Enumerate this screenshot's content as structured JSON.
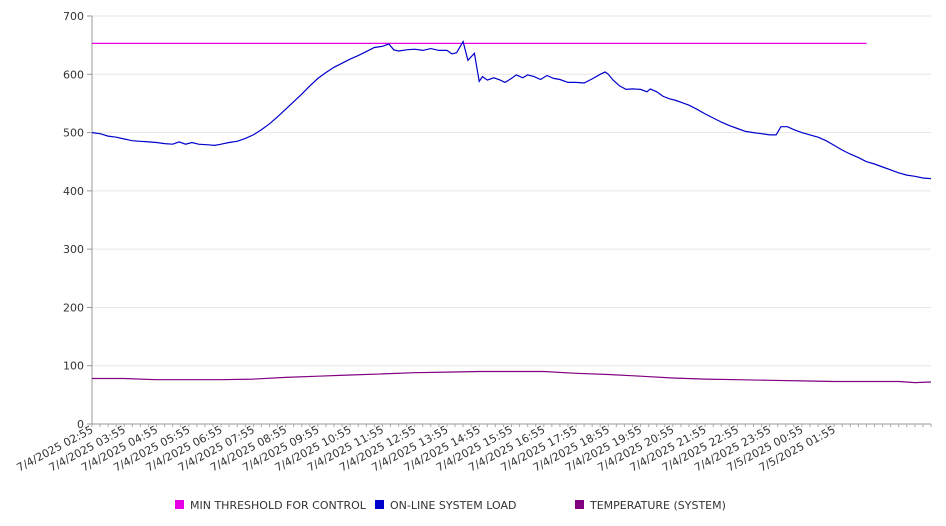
{
  "chart_data": {
    "type": "line",
    "title": "",
    "xlabel": "",
    "ylabel": "",
    "ylim": [
      0,
      700
    ],
    "y_ticks": [
      0,
      100,
      200,
      300,
      400,
      500,
      600,
      700
    ],
    "grid": true,
    "legend_position": "bottom",
    "x_tick_labels": [
      "7/4/2025 02:55",
      "7/4/2025 03:55",
      "7/4/2025 04:55",
      "7/4/2025 05:55",
      "7/4/2025 06:55",
      "7/4/2025 07:55",
      "7/4/2025 08:55",
      "7/4/2025 09:55",
      "7/4/2025 10:55",
      "7/4/2025 11:55",
      "7/4/2025 12:55",
      "7/4/2025 13:55",
      "7/4/2025 14:55",
      "7/4/2025 15:55",
      "7/4/2025 16:55",
      "7/4/2025 17:55",
      "7/4/2025 18:55",
      "7/4/2025 19:55",
      "7/4/2025 20:55",
      "7/4/2025 21:55",
      "7/4/2025 22:55",
      "7/4/2025 23:55",
      "7/5/2025 00:55",
      "7/5/2025 01:55"
    ],
    "series": [
      {
        "name": "MIN THRESHOLD FOR CONTROL",
        "color": "#e600e6",
        "points": [
          [
            0,
            653
          ],
          [
            24,
            653
          ]
        ]
      },
      {
        "name": "ON-LINE SYSTEM LOAD",
        "color": "#0000cc",
        "points": [
          [
            0,
            500
          ],
          [
            0.25,
            498
          ],
          [
            0.5,
            494
          ],
          [
            0.75,
            492
          ],
          [
            1,
            489
          ],
          [
            1.25,
            486
          ],
          [
            1.5,
            485
          ],
          [
            1.75,
            484
          ],
          [
            2,
            483
          ],
          [
            2.25,
            481
          ],
          [
            2.5,
            480
          ],
          [
            2.7,
            484
          ],
          [
            2.9,
            480
          ],
          [
            3.1,
            483
          ],
          [
            3.3,
            480
          ],
          [
            3.6,
            479
          ],
          [
            3.8,
            478
          ],
          [
            4,
            480
          ],
          [
            4.25,
            483
          ],
          [
            4.5,
            485
          ],
          [
            4.75,
            490
          ],
          [
            5,
            496
          ],
          [
            5.25,
            505
          ],
          [
            5.5,
            515
          ],
          [
            5.75,
            527
          ],
          [
            6,
            540
          ],
          [
            6.25,
            553
          ],
          [
            6.5,
            566
          ],
          [
            6.75,
            580
          ],
          [
            7,
            593
          ],
          [
            7.25,
            603
          ],
          [
            7.5,
            612
          ],
          [
            7.75,
            619
          ],
          [
            8,
            626
          ],
          [
            8.25,
            632
          ],
          [
            8.5,
            639
          ],
          [
            8.75,
            646
          ],
          [
            9,
            648
          ],
          [
            9.2,
            652
          ],
          [
            9.35,
            642
          ],
          [
            9.5,
            640
          ],
          [
            9.75,
            642
          ],
          [
            10,
            643
          ],
          [
            10.25,
            641
          ],
          [
            10.5,
            644
          ],
          [
            10.75,
            641
          ],
          [
            11,
            641
          ],
          [
            11.15,
            635
          ],
          [
            11.3,
            637
          ],
          [
            11.5,
            656
          ],
          [
            11.65,
            624
          ],
          [
            11.85,
            636
          ],
          [
            12,
            588
          ],
          [
            12.1,
            596
          ],
          [
            12.25,
            590
          ],
          [
            12.45,
            594
          ],
          [
            12.65,
            590
          ],
          [
            12.8,
            586
          ],
          [
            13,
            593
          ],
          [
            13.15,
            599
          ],
          [
            13.35,
            594
          ],
          [
            13.5,
            599
          ],
          [
            13.7,
            596
          ],
          [
            13.9,
            591
          ],
          [
            14.1,
            598
          ],
          [
            14.3,
            593
          ],
          [
            14.5,
            591
          ],
          [
            14.75,
            586
          ],
          [
            15,
            586
          ],
          [
            15.25,
            585
          ],
          [
            15.5,
            592
          ],
          [
            15.75,
            600
          ],
          [
            15.9,
            604
          ],
          [
            16,
            600
          ],
          [
            16.15,
            590
          ],
          [
            16.35,
            580
          ],
          [
            16.55,
            574
          ],
          [
            16.75,
            575
          ],
          [
            17,
            574
          ],
          [
            17.2,
            570
          ],
          [
            17.3,
            575
          ],
          [
            17.5,
            570
          ],
          [
            17.7,
            562
          ],
          [
            17.9,
            558
          ],
          [
            18.1,
            555
          ],
          [
            18.3,
            551
          ],
          [
            18.5,
            547
          ],
          [
            18.75,
            540
          ],
          [
            19,
            532
          ],
          [
            19.25,
            525
          ],
          [
            19.5,
            518
          ],
          [
            19.75,
            512
          ],
          [
            20,
            507
          ],
          [
            20.25,
            502
          ],
          [
            20.5,
            500
          ],
          [
            20.75,
            498
          ],
          [
            21,
            496
          ],
          [
            21.2,
            496
          ],
          [
            21.35,
            510
          ],
          [
            21.55,
            510
          ],
          [
            21.75,
            505
          ],
          [
            22,
            500
          ],
          [
            22.25,
            496
          ],
          [
            22.5,
            492
          ],
          [
            22.75,
            486
          ],
          [
            23,
            478
          ],
          [
            23.25,
            470
          ],
          [
            23.5,
            463
          ],
          [
            23.75,
            457
          ],
          [
            24,
            450
          ],
          [
            24.25,
            446
          ],
          [
            24.5,
            441
          ],
          [
            24.75,
            436
          ],
          [
            25,
            431
          ],
          [
            25.25,
            427
          ],
          [
            25.5,
            425
          ],
          [
            25.75,
            422
          ],
          [
            26,
            421
          ]
        ]
      },
      {
        "name": "TEMPERATURE (SYSTEM)",
        "color": "#800080",
        "points": [
          [
            0,
            78
          ],
          [
            1,
            78
          ],
          [
            2,
            76
          ],
          [
            3,
            76
          ],
          [
            4,
            76
          ],
          [
            5,
            77
          ],
          [
            6,
            80
          ],
          [
            7,
            82
          ],
          [
            8,
            84
          ],
          [
            9,
            86
          ],
          [
            10,
            88
          ],
          [
            11,
            89
          ],
          [
            12,
            90
          ],
          [
            13,
            90
          ],
          [
            14,
            90
          ],
          [
            15,
            87
          ],
          [
            16,
            85
          ],
          [
            17,
            82
          ],
          [
            18,
            79
          ],
          [
            19,
            77
          ],
          [
            20,
            76
          ],
          [
            21,
            75
          ],
          [
            22,
            74
          ],
          [
            23,
            73
          ],
          [
            24,
            73
          ],
          [
            25,
            73
          ],
          [
            25.5,
            71
          ],
          [
            26,
            72
          ]
        ]
      }
    ]
  }
}
